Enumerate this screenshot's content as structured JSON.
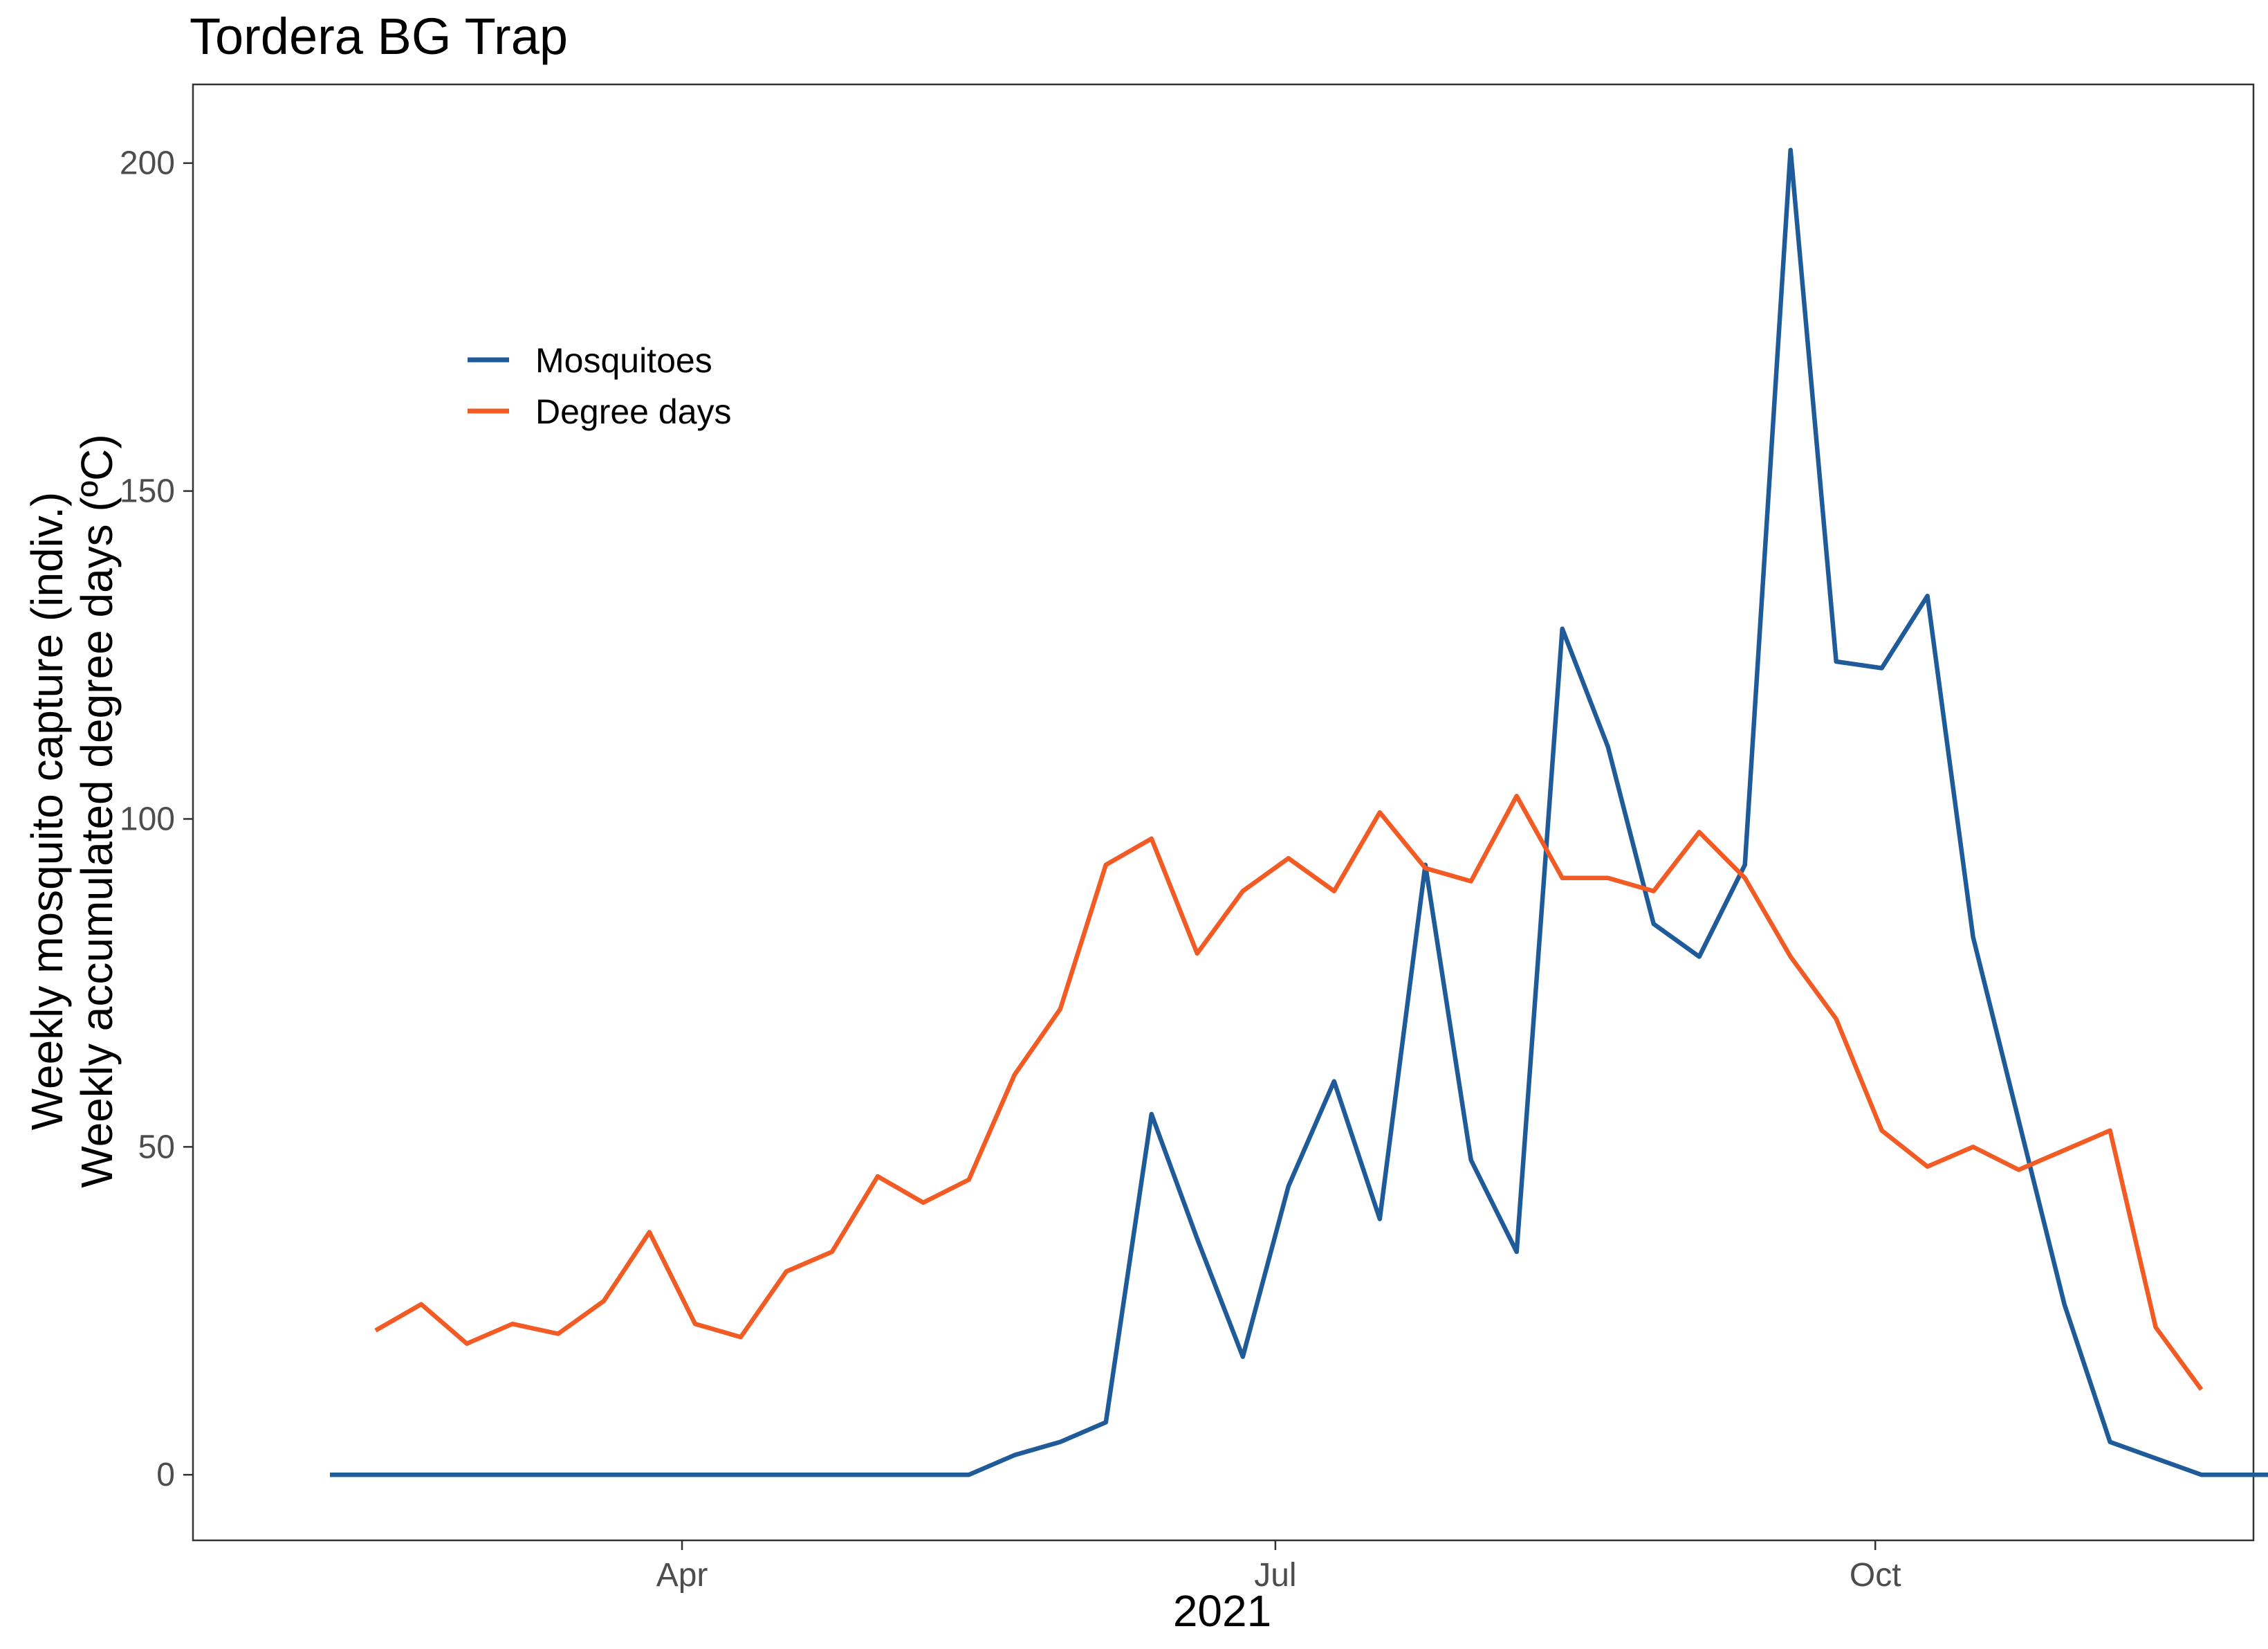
{
  "colors": {
    "mosquitoes": "#1f5a99",
    "degree_days": "#f25c24",
    "panel_border": "#333333",
    "tick": "#4d4d4d"
  },
  "chart_data": {
    "type": "line",
    "title": "Tordera BG Trap",
    "xlabel": "2021",
    "ylabel_lines": [
      "Weekly mosquito capture (indiv.)",
      "Weekly accumulated degree days (ºC)"
    ],
    "xlim": [
      "2021-01-16",
      "2021-11-28"
    ],
    "ylim": [
      -10,
      212
    ],
    "x_ticks": [
      {
        "date": "2021-04-01",
        "label": "Apr"
      },
      {
        "date": "2021-07-01",
        "label": "Jul"
      },
      {
        "date": "2021-10-01",
        "label": "Oct"
      }
    ],
    "y_ticks": [
      0,
      50,
      100,
      150,
      200
    ],
    "grid": false,
    "legend_position": "top-left",
    "series": [
      {
        "name": "Mosquitoes",
        "color": "#1f5a99",
        "points": [
          [
            "2021-02-06",
            0
          ],
          [
            "2021-02-13",
            0
          ],
          [
            "2021-02-20",
            0
          ],
          [
            "2021-02-27",
            0
          ],
          [
            "2021-03-06",
            0
          ],
          [
            "2021-03-13",
            0
          ],
          [
            "2021-03-20",
            0
          ],
          [
            "2021-03-27",
            0
          ],
          [
            "2021-04-03",
            0
          ],
          [
            "2021-04-10",
            0
          ],
          [
            "2021-04-17",
            0
          ],
          [
            "2021-04-24",
            0
          ],
          [
            "2021-05-01",
            0
          ],
          [
            "2021-05-08",
            0
          ],
          [
            "2021-05-15",
            0
          ],
          [
            "2021-05-22",
            3
          ],
          [
            "2021-05-29",
            5
          ],
          [
            "2021-06-05",
            8
          ],
          [
            "2021-06-12",
            55
          ],
          [
            "2021-06-19",
            36
          ],
          [
            "2021-06-26",
            18
          ],
          [
            "2021-07-03",
            44
          ],
          [
            "2021-07-10",
            60
          ],
          [
            "2021-07-17",
            39
          ],
          [
            "2021-07-24",
            93
          ],
          [
            "2021-07-31",
            48
          ],
          [
            "2021-08-07",
            34
          ],
          [
            "2021-08-14",
            129
          ],
          [
            "2021-08-21",
            111
          ],
          [
            "2021-08-28",
            84
          ],
          [
            "2021-09-04",
            79
          ],
          [
            "2021-09-11",
            93
          ],
          [
            "2021-09-18",
            202
          ],
          [
            "2021-09-25",
            124
          ],
          [
            "2021-10-02",
            123
          ],
          [
            "2021-10-09",
            134
          ],
          [
            "2021-10-16",
            82
          ],
          [
            "2021-10-30",
            26
          ],
          [
            "2021-11-06",
            5
          ],
          [
            "2021-11-20",
            0
          ],
          [
            "2021-11-27",
            0
          ],
          [
            "2021-12-04",
            0
          ]
        ]
      },
      {
        "name": "Degree days",
        "color": "#f25c24",
        "points": [
          [
            "2021-02-13",
            22
          ],
          [
            "2021-02-20",
            26
          ],
          [
            "2021-02-27",
            20
          ],
          [
            "2021-03-06",
            23
          ],
          [
            "2021-03-13",
            21.5
          ],
          [
            "2021-03-20",
            26.5
          ],
          [
            "2021-03-27",
            37
          ],
          [
            "2021-04-03",
            23
          ],
          [
            "2021-04-10",
            21
          ],
          [
            "2021-04-17",
            31
          ],
          [
            "2021-04-24",
            34
          ],
          [
            "2021-05-01",
            45.5
          ],
          [
            "2021-05-08",
            41.5
          ],
          [
            "2021-05-15",
            45
          ],
          [
            "2021-05-22",
            61
          ],
          [
            "2021-05-29",
            71
          ],
          [
            "2021-06-05",
            93
          ],
          [
            "2021-06-12",
            97
          ],
          [
            "2021-06-19",
            79.5
          ],
          [
            "2021-06-26",
            89
          ],
          [
            "2021-07-03",
            94
          ],
          [
            "2021-07-10",
            89
          ],
          [
            "2021-07-17",
            101
          ],
          [
            "2021-07-24",
            92.5
          ],
          [
            "2021-07-31",
            90.5
          ],
          [
            "2021-08-07",
            103.5
          ],
          [
            "2021-08-14",
            91
          ],
          [
            "2021-08-21",
            91
          ],
          [
            "2021-08-28",
            89
          ],
          [
            "2021-09-04",
            98
          ],
          [
            "2021-09-11",
            91
          ],
          [
            "2021-09-18",
            79
          ],
          [
            "2021-09-25",
            69.5
          ],
          [
            "2021-10-02",
            52.5
          ],
          [
            "2021-10-09",
            47
          ],
          [
            "2021-10-16",
            50
          ],
          [
            "2021-10-23",
            46.5
          ],
          [
            "2021-10-30",
            49.5
          ],
          [
            "2021-11-06",
            52.5
          ],
          [
            "2021-11-13",
            22.5
          ],
          [
            "2021-11-20",
            13
          ]
        ]
      }
    ]
  }
}
